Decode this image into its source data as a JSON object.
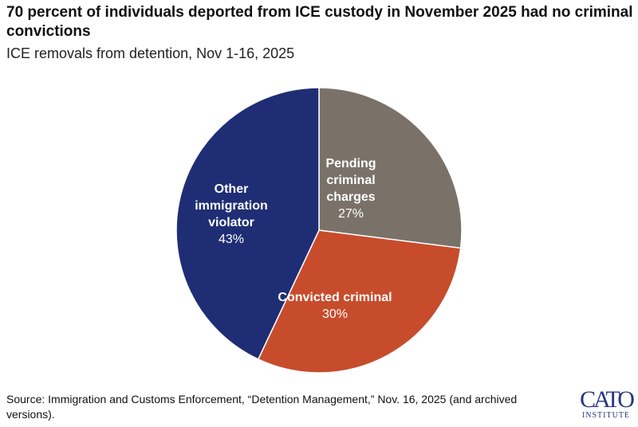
{
  "chart_data": {
    "type": "pie",
    "title": "70 percent of individuals deported from ICE custody in November 2025 had no criminal convictions",
    "subtitle": "ICE removals from detention, Nov 1-16, 2025",
    "slices": [
      {
        "label": "Pending criminal charges",
        "lines": [
          "Pending",
          "criminal",
          "charges"
        ],
        "value": 27,
        "value_label": "27%",
        "color": "#7a7269"
      },
      {
        "label": "Convicted criminal",
        "lines": [
          "Convicted criminal"
        ],
        "value": 30,
        "value_label": "30%",
        "color": "#c74c2c"
      },
      {
        "label": "Other immigration violator",
        "lines": [
          "Other",
          "immigration",
          "violator"
        ],
        "value": 43,
        "value_label": "43%",
        "color": "#1f2e74"
      }
    ],
    "start": "top",
    "direction": "clockwise",
    "legend": "none"
  },
  "source": "Source: Immigration and Customs Enforcement, “Detention Management,” Nov. 16, 2025 (and archived versions).",
  "logo": {
    "line1": "CATO",
    "line2": "INSTITUTE"
  }
}
